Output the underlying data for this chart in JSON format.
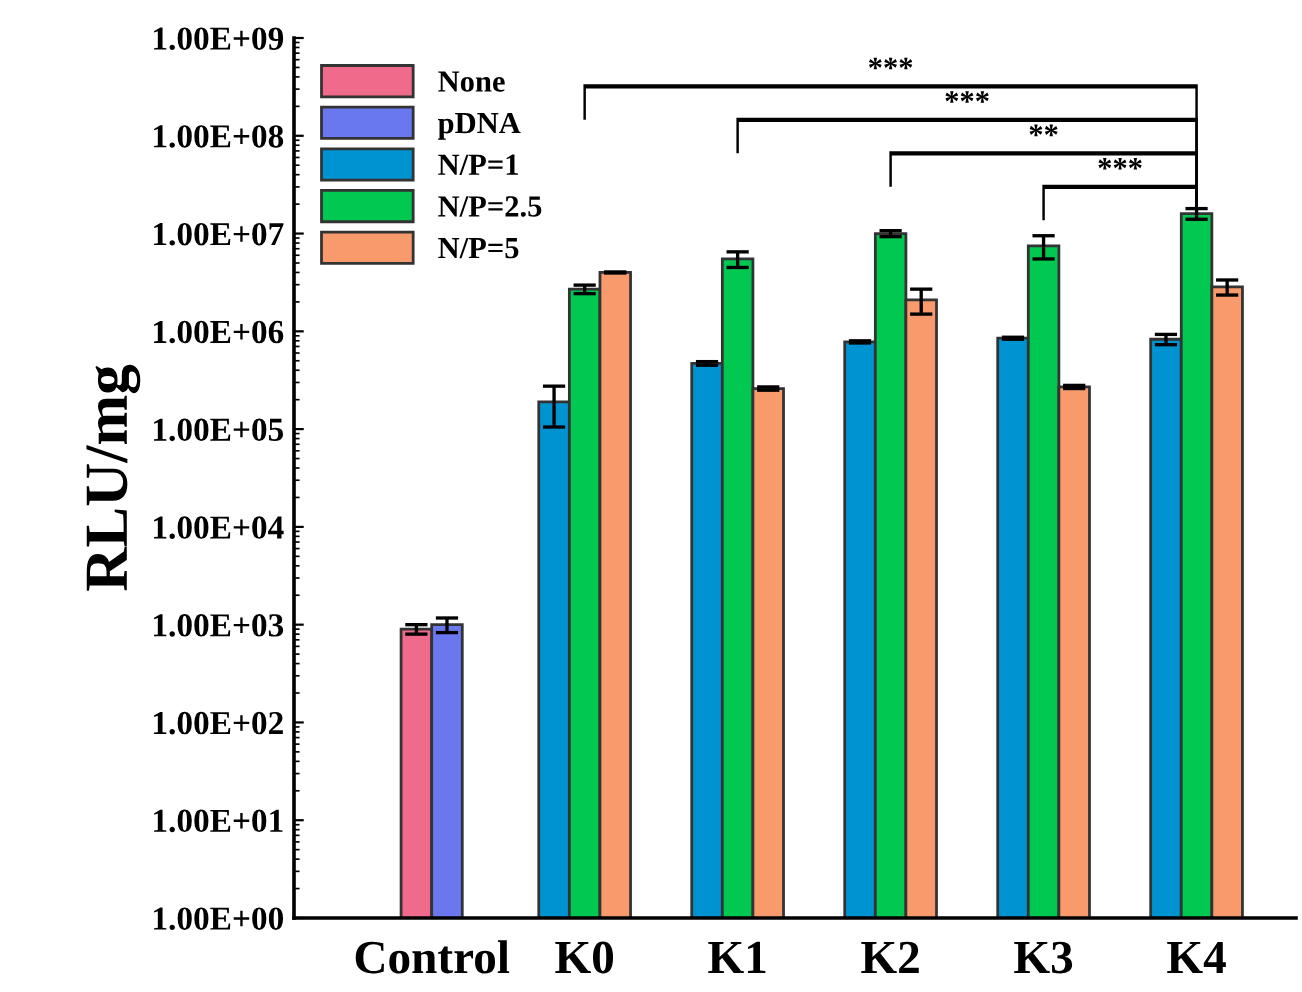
{
  "chart_data": {
    "type": "bar",
    "ylabel": "RLU/mg",
    "categories": [
      "Control",
      "K0",
      "K1",
      "K2",
      "K3",
      "K4"
    ],
    "series": [
      {
        "name": "None",
        "color": "#f06a8c",
        "values": [
          900,
          null,
          null,
          null,
          null,
          null
        ],
        "errors": [
          100,
          null,
          null,
          null,
          null,
          null
        ]
      },
      {
        "name": "pDNA",
        "color": "#6a78f0",
        "values": [
          1000,
          null,
          null,
          null,
          null,
          null
        ],
        "errors": [
          170,
          null,
          null,
          null,
          null,
          null
        ]
      },
      {
        "name": "N/P=1",
        "color": "#0093d2",
        "values": [
          null,
          190000,
          470000,
          780000,
          850000,
          830000
        ],
        "errors": [
          null,
          85000,
          20000,
          20000,
          20000,
          100000
        ]
      },
      {
        "name": "N/P=2.5",
        "color": "#00c850",
        "values": [
          null,
          2700000,
          5500000,
          10000000,
          7500000,
          16000000
        ],
        "errors": [
          null,
          270000,
          1000000,
          700000,
          2000000,
          2000000
        ]
      },
      {
        "name": "N/P=5",
        "color": "#f89a6c",
        "values": [
          null,
          4000000,
          260000,
          2100000,
          270000,
          2850000
        ],
        "errors": [
          null,
          50000,
          10000,
          600000,
          10000,
          500000
        ]
      }
    ],
    "log": "y",
    "ylim": [
      1,
      1000000000
    ],
    "yticks": [
      {
        "value": 1,
        "label": "1.00E+00"
      },
      {
        "value": 10,
        "label": "1.00E+01"
      },
      {
        "value": 100,
        "label": "1.00E+02"
      },
      {
        "value": 1000,
        "label": "1.00E+03"
      },
      {
        "value": 10000,
        "label": "1.00E+04"
      },
      {
        "value": 100000,
        "label": "1.00E+05"
      },
      {
        "value": 1000000,
        "label": "1.00E+06"
      },
      {
        "value": 10000000,
        "label": "1.00E+07"
      },
      {
        "value": 100000000,
        "label": "1.00E+08"
      },
      {
        "value": 1000000000,
        "label": "1.00E+09"
      }
    ],
    "annotations": [
      "***",
      "***",
      "**",
      "***"
    ],
    "legend": "top left",
    "grid": false
  }
}
